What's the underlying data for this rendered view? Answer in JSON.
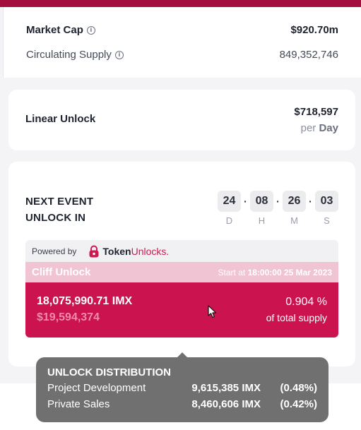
{
  "market": {
    "market_cap_label": "Market Cap",
    "market_cap_value": "$920.70m",
    "circ_supply_label": "Circulating Supply",
    "circ_supply_value": "849,352,746"
  },
  "linear": {
    "label": "Linear Unlock",
    "amount": "$718,597",
    "per": "per",
    "period": "Day"
  },
  "next_event": {
    "title_line1": "NEXT EVENT",
    "title_line2": "UNLOCK IN",
    "countdown": [
      {
        "value": "24",
        "unit": "D"
      },
      {
        "value": "08",
        "unit": "H"
      },
      {
        "value": "26",
        "unit": "M"
      },
      {
        "value": "03",
        "unit": "S"
      }
    ],
    "separator": "·"
  },
  "powered": {
    "label": "Powered by",
    "brand_token": "Token",
    "brand_unlocks": "Unlocks",
    "brand_dot": "."
  },
  "cliff": {
    "title": "Cliff Unlock",
    "start_prefix": "Start at",
    "start_time": "18:00:00 25 Mar 2023",
    "amount": "18,075,990.71 IMX",
    "usd": "$19,594,374",
    "percent": "0.904 %",
    "of_supply": "of total supply"
  },
  "tooltip": {
    "title": "UNLOCK DISTRIBUTION",
    "rows": [
      {
        "name": "Project Development",
        "amount": "9,615,385 IMX",
        "percent": "(0.48%)"
      },
      {
        "name": "Private Sales",
        "amount": "8,460,606 IMX",
        "percent": "(0.42%)"
      }
    ]
  },
  "colors": {
    "brand_top": "#a3103f",
    "cliff_main": "#cb1350",
    "cliff_header": "#f0c4d3",
    "tooltip_bg": "#707070"
  },
  "icons": {
    "info": "info-circle-icon",
    "brand": "tokenunlocks-lock-icon",
    "cursor": "mouse-cursor-icon"
  }
}
